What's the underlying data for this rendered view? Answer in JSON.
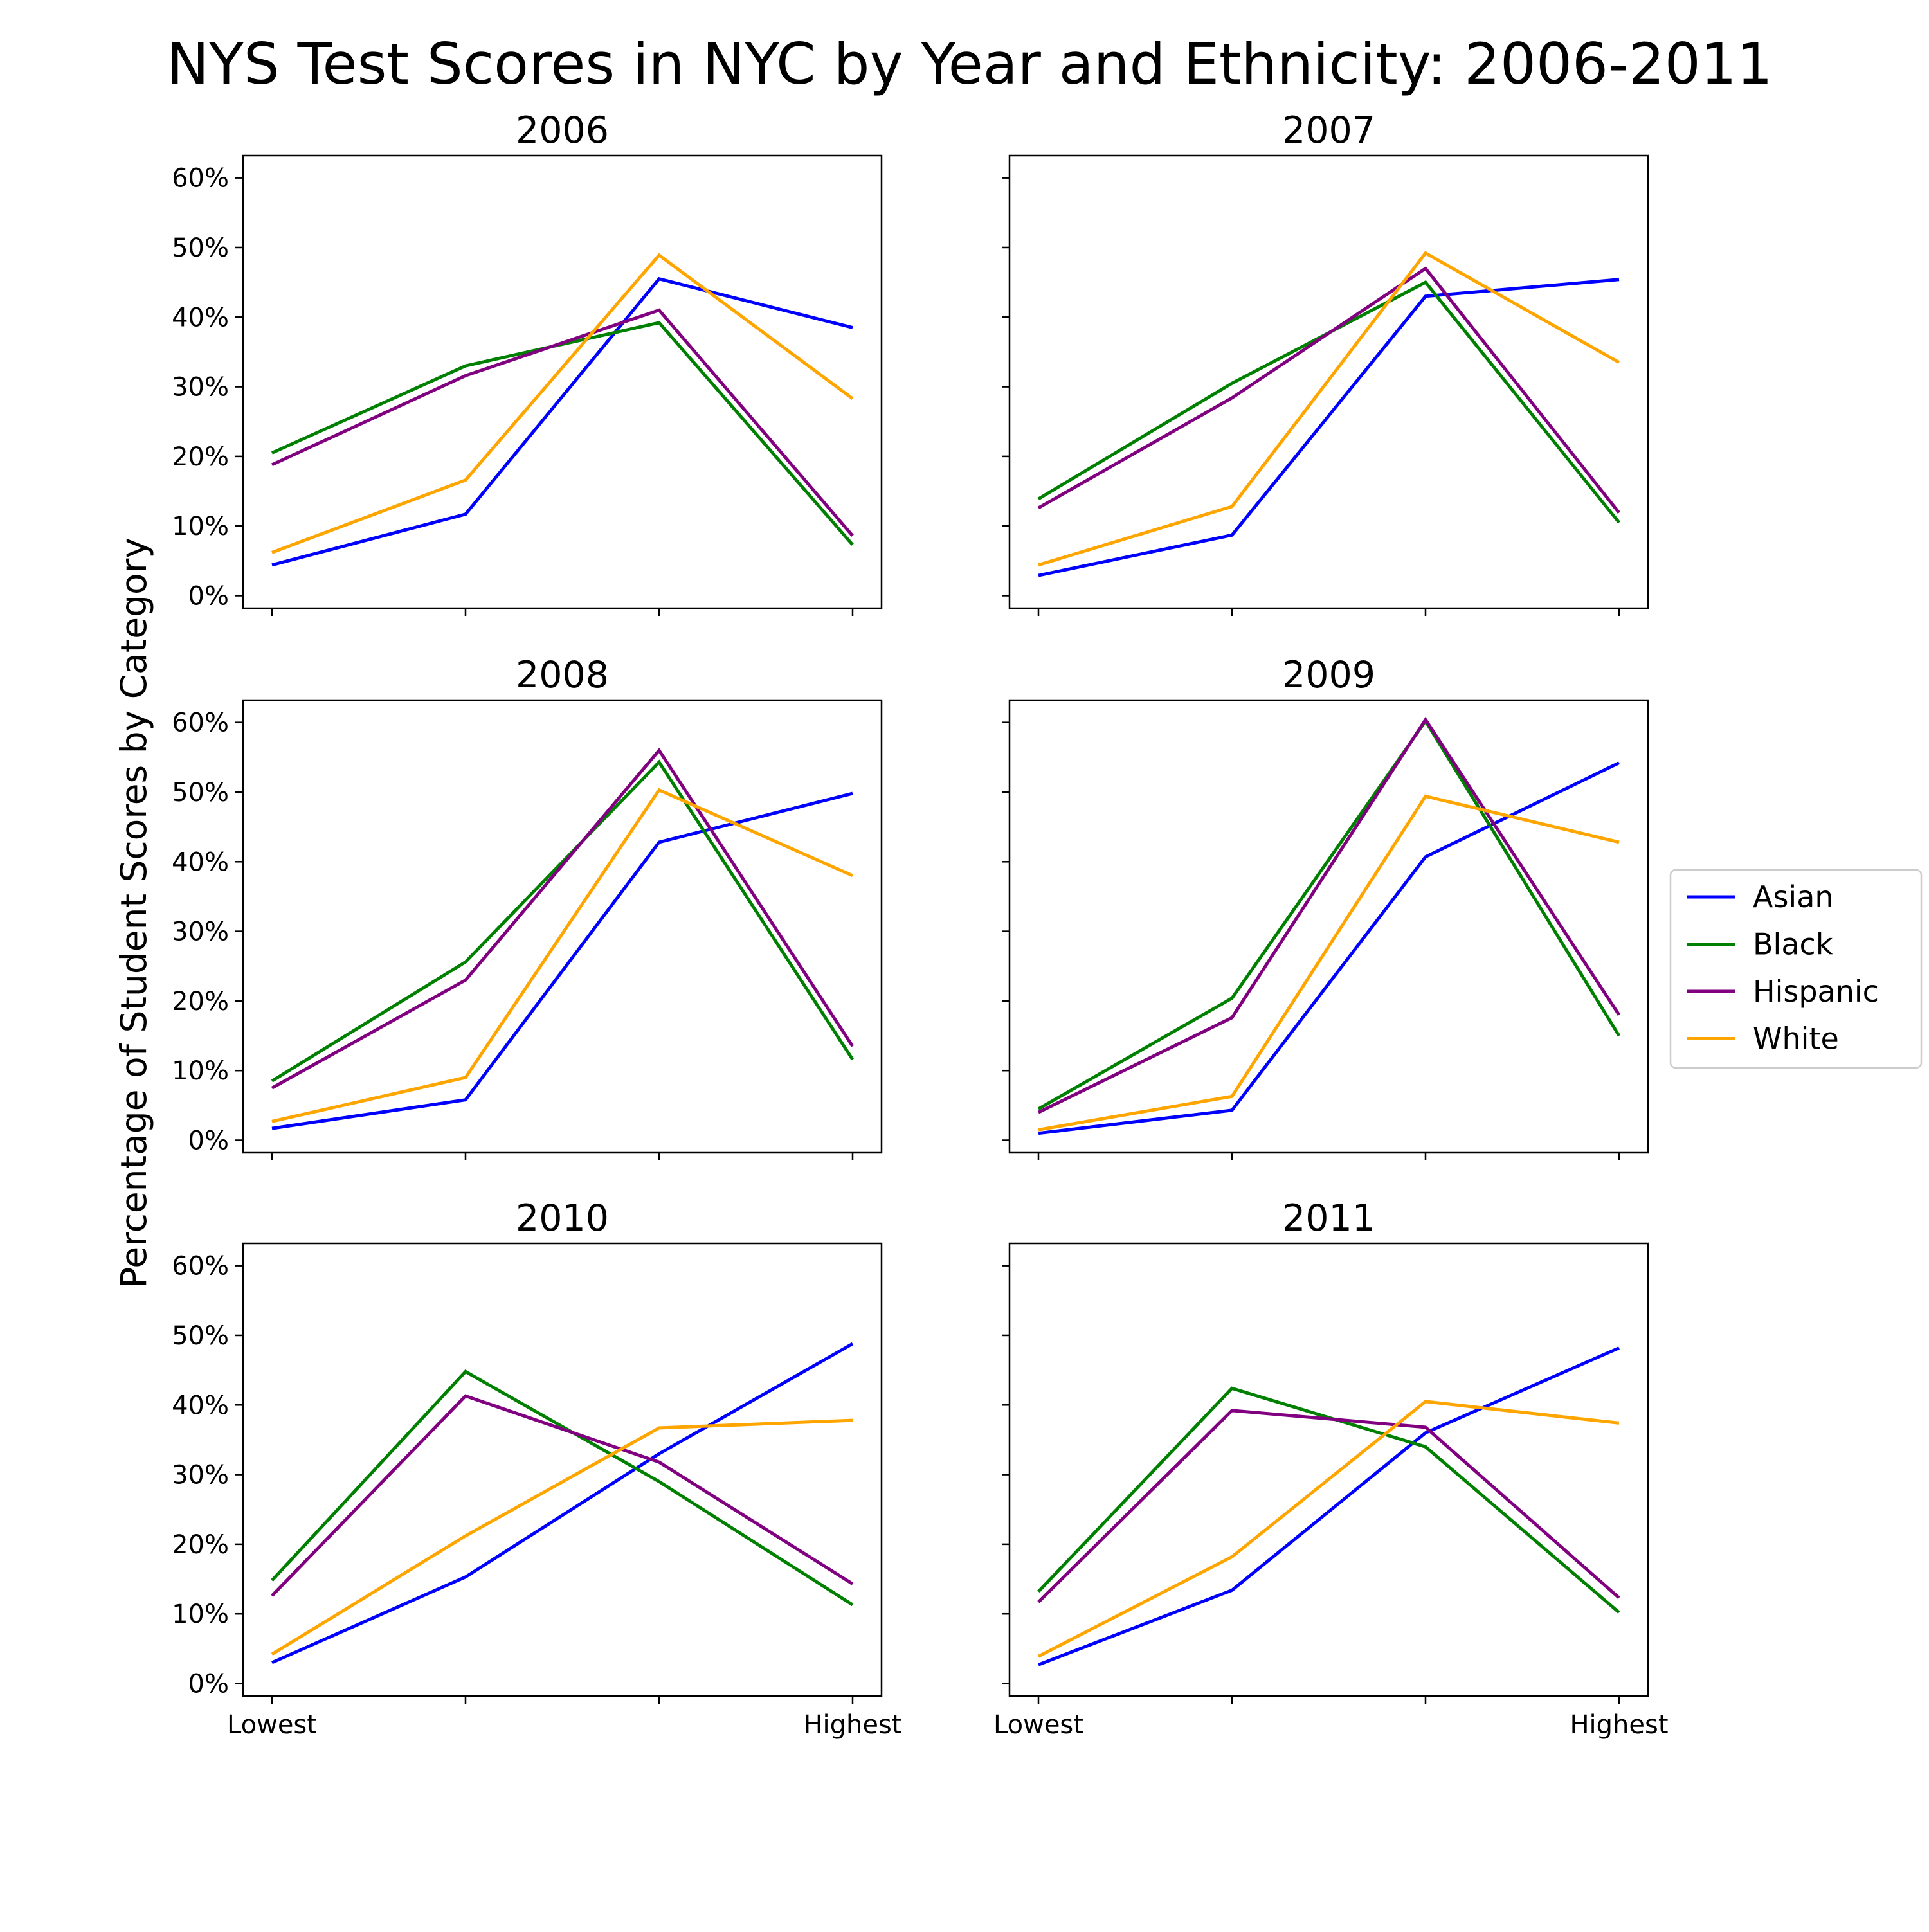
{
  "chart_data": {
    "type": "line",
    "title": "NYS Test Scores in NYC by Year and Ethnicity: 2006-2011",
    "xlabel": "",
    "ylabel": "Percentage of Student Scores by Category",
    "x_categories": [
      "Lowest",
      "",
      "",
      "Highest"
    ],
    "y_ticks": [
      0,
      10,
      20,
      30,
      40,
      50,
      60
    ],
    "y_tick_labels": [
      "0%",
      "10%",
      "20%",
      "30%",
      "40%",
      "50%",
      "60%"
    ],
    "ylim": [
      -1.8,
      63.2
    ],
    "grid": false,
    "legend_position": "right",
    "series_colors": {
      "Asian": "#0000ff",
      "Black": "#008000",
      "Hispanic": "#800080",
      "White": "#ffa500"
    },
    "legend": [
      "Asian",
      "Black",
      "Hispanic",
      "White"
    ],
    "panels": [
      {
        "title": "2006",
        "series": [
          {
            "name": "Asian",
            "values": [
              4.4,
              11.7,
              45.5,
              38.5
            ]
          },
          {
            "name": "Black",
            "values": [
              20.5,
              33.0,
              39.2,
              7.3
            ]
          },
          {
            "name": "Hispanic",
            "values": [
              18.8,
              31.6,
              41.0,
              8.6
            ]
          },
          {
            "name": "White",
            "values": [
              6.2,
              16.6,
              48.9,
              28.3
            ]
          }
        ]
      },
      {
        "title": "2007",
        "series": [
          {
            "name": "Asian",
            "values": [
              2.9,
              8.7,
              43.0,
              45.4
            ]
          },
          {
            "name": "Black",
            "values": [
              13.9,
              30.5,
              45.0,
              10.5
            ]
          },
          {
            "name": "Hispanic",
            "values": [
              12.6,
              28.4,
              47.0,
              11.9
            ]
          },
          {
            "name": "White",
            "values": [
              4.4,
              12.8,
              49.2,
              33.5
            ]
          }
        ]
      },
      {
        "title": "2008",
        "series": [
          {
            "name": "Asian",
            "values": [
              1.7,
              5.8,
              42.8,
              49.8
            ]
          },
          {
            "name": "Black",
            "values": [
              8.5,
              25.6,
              54.3,
              11.6
            ]
          },
          {
            "name": "Hispanic",
            "values": [
              7.5,
              23.0,
              56.0,
              13.5
            ]
          },
          {
            "name": "White",
            "values": [
              2.7,
              9.0,
              50.3,
              38.0
            ]
          }
        ]
      },
      {
        "title": "2009",
        "series": [
          {
            "name": "Asian",
            "values": [
              1.0,
              4.3,
              40.7,
              54.2
            ]
          },
          {
            "name": "Black",
            "values": [
              4.5,
              20.4,
              60.2,
              15.0
            ]
          },
          {
            "name": "Hispanic",
            "values": [
              4.0,
              17.6,
              60.4,
              18.0
            ]
          },
          {
            "name": "White",
            "values": [
              1.5,
              6.3,
              49.4,
              42.8
            ]
          }
        ]
      },
      {
        "title": "2010",
        "series": [
          {
            "name": "Asian",
            "values": [
              3.0,
              15.3,
              33.0,
              48.8
            ]
          },
          {
            "name": "Black",
            "values": [
              14.8,
              44.8,
              29.0,
              11.3
            ]
          },
          {
            "name": "Hispanic",
            "values": [
              12.6,
              41.3,
              31.8,
              14.3
            ]
          },
          {
            "name": "White",
            "values": [
              4.2,
              21.2,
              36.7,
              37.8
            ]
          }
        ]
      },
      {
        "title": "2011",
        "series": [
          {
            "name": "Asian",
            "values": [
              2.7,
              13.4,
              36.0,
              48.2
            ]
          },
          {
            "name": "Black",
            "values": [
              13.2,
              42.4,
              34.0,
              10.2
            ]
          },
          {
            "name": "Hispanic",
            "values": [
              11.7,
              39.2,
              36.8,
              12.3
            ]
          },
          {
            "name": "White",
            "values": [
              3.9,
              18.2,
              40.5,
              37.4
            ]
          }
        ]
      }
    ]
  }
}
